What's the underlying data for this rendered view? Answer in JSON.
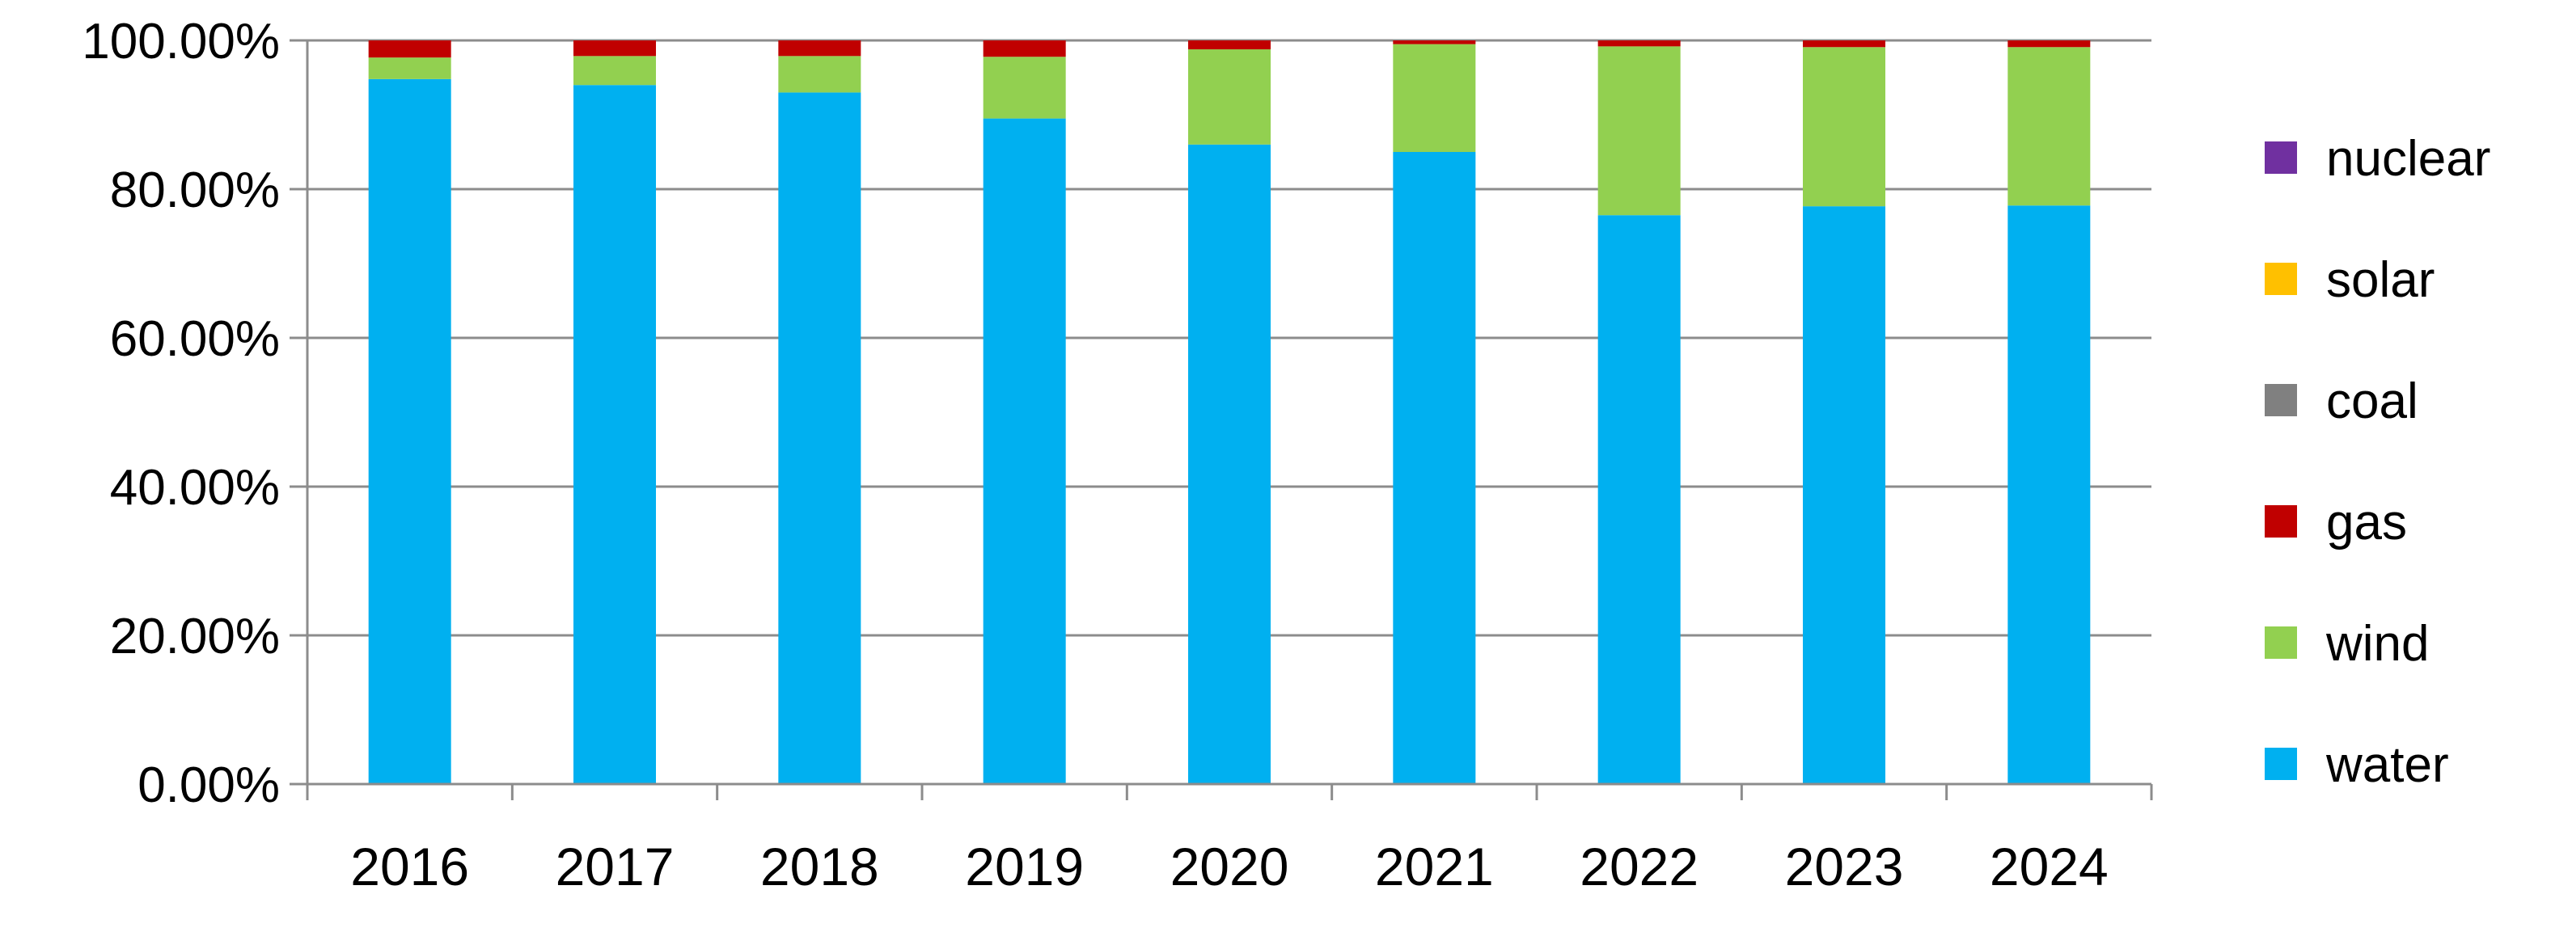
{
  "chart_data": {
    "type": "bar",
    "stacked": true,
    "categories": [
      "2016",
      "2017",
      "2018",
      "2019",
      "2020",
      "2021",
      "2022",
      "2023",
      "2024"
    ],
    "series": [
      {
        "name": "water",
        "color": "#00b0f0",
        "values": [
          94.8,
          94.0,
          93.0,
          89.5,
          86.0,
          85.0,
          76.5,
          77.7,
          77.8
        ]
      },
      {
        "name": "wind",
        "color": "#92d050",
        "values": [
          2.9,
          3.9,
          4.9,
          8.3,
          12.8,
          14.5,
          22.7,
          21.4,
          21.3
        ]
      },
      {
        "name": "gas",
        "color": "#c00000",
        "values": [
          2.3,
          2.1,
          2.1,
          2.2,
          1.2,
          0.5,
          0.8,
          0.9,
          0.9
        ]
      },
      {
        "name": "coal",
        "color": "#808080",
        "values": [
          0,
          0,
          0,
          0,
          0,
          0,
          0,
          0,
          0
        ]
      },
      {
        "name": "solar",
        "color": "#ffc000",
        "values": [
          0,
          0,
          0,
          0,
          0,
          0,
          0,
          0,
          0
        ]
      },
      {
        "name": "nuclear",
        "color": "#7030a0",
        "values": [
          0,
          0,
          0,
          0,
          0,
          0,
          0,
          0,
          0
        ]
      }
    ],
    "yticks": [
      "0.00%",
      "20.00%",
      "40.00%",
      "60.00%",
      "80.00%",
      "100.00%"
    ],
    "ylim": [
      0,
      100
    ],
    "title": "",
    "xlabel": "",
    "ylabel": "",
    "grid": true,
    "legend_position": "right"
  }
}
